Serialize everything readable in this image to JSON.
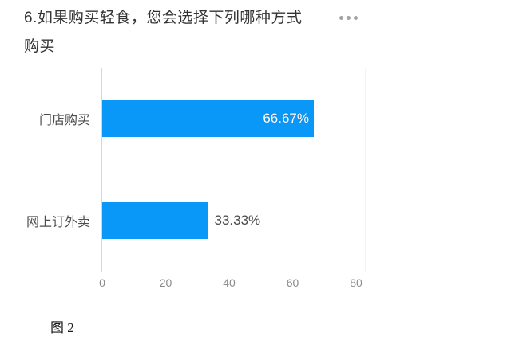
{
  "question": {
    "title_full": "6.如果购买轻食，您会选择下列哪种方式购买",
    "title_lines": [
      "6.如果购买轻食，您会选择下列哪种方式",
      "购买"
    ],
    "menu_icon": "ellipsis-icon"
  },
  "chart_data": {
    "type": "bar",
    "orientation": "horizontal",
    "title": "6.如果购买轻食，您会选择下列哪种方式购买",
    "categories": [
      "门店购买",
      "网上订外卖"
    ],
    "values": [
      66.67,
      33.33
    ],
    "value_labels": [
      "66.67%",
      "33.33%"
    ],
    "value_label_placement": [
      "inside-end",
      "outside-end"
    ],
    "xlim": [
      0,
      80
    ],
    "x_ticks": [
      "0",
      "20",
      "40",
      "60",
      "80"
    ],
    "grid": false,
    "legend": "none",
    "bar_color": "#0997f8"
  },
  "caption": "图 2",
  "colors": {
    "bar": "#0997f8",
    "title_text": "#333333",
    "category_text": "#4d4d4d",
    "tick_text": "#8a8a8a",
    "value_outside_text": "#4a4a4a",
    "menu_dots": "#a3a3a3"
  }
}
